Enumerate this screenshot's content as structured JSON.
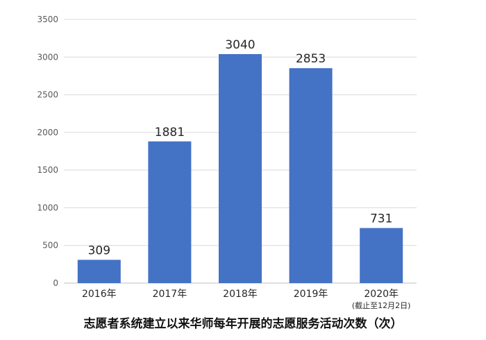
{
  "chart_data": {
    "type": "bar",
    "title": "志愿者系统建立以来华师每年开展的志愿服务活动次数（次）",
    "categories": [
      "2016年",
      "2017年",
      "2018年",
      "2019年",
      "2020年"
    ],
    "category_notes": [
      "",
      "",
      "",
      "",
      "(截止至12月2日)"
    ],
    "values": [
      309,
      1881,
      3040,
      2853,
      731
    ],
    "y_ticks": [
      "0",
      "500",
      "1000",
      "1500",
      "2000",
      "2500",
      "3000",
      "3500"
    ],
    "ylim": [
      0,
      3500
    ],
    "grid": true,
    "legend": "none",
    "bar_color": "#4472C4",
    "xlabel": "",
    "ylabel": ""
  }
}
